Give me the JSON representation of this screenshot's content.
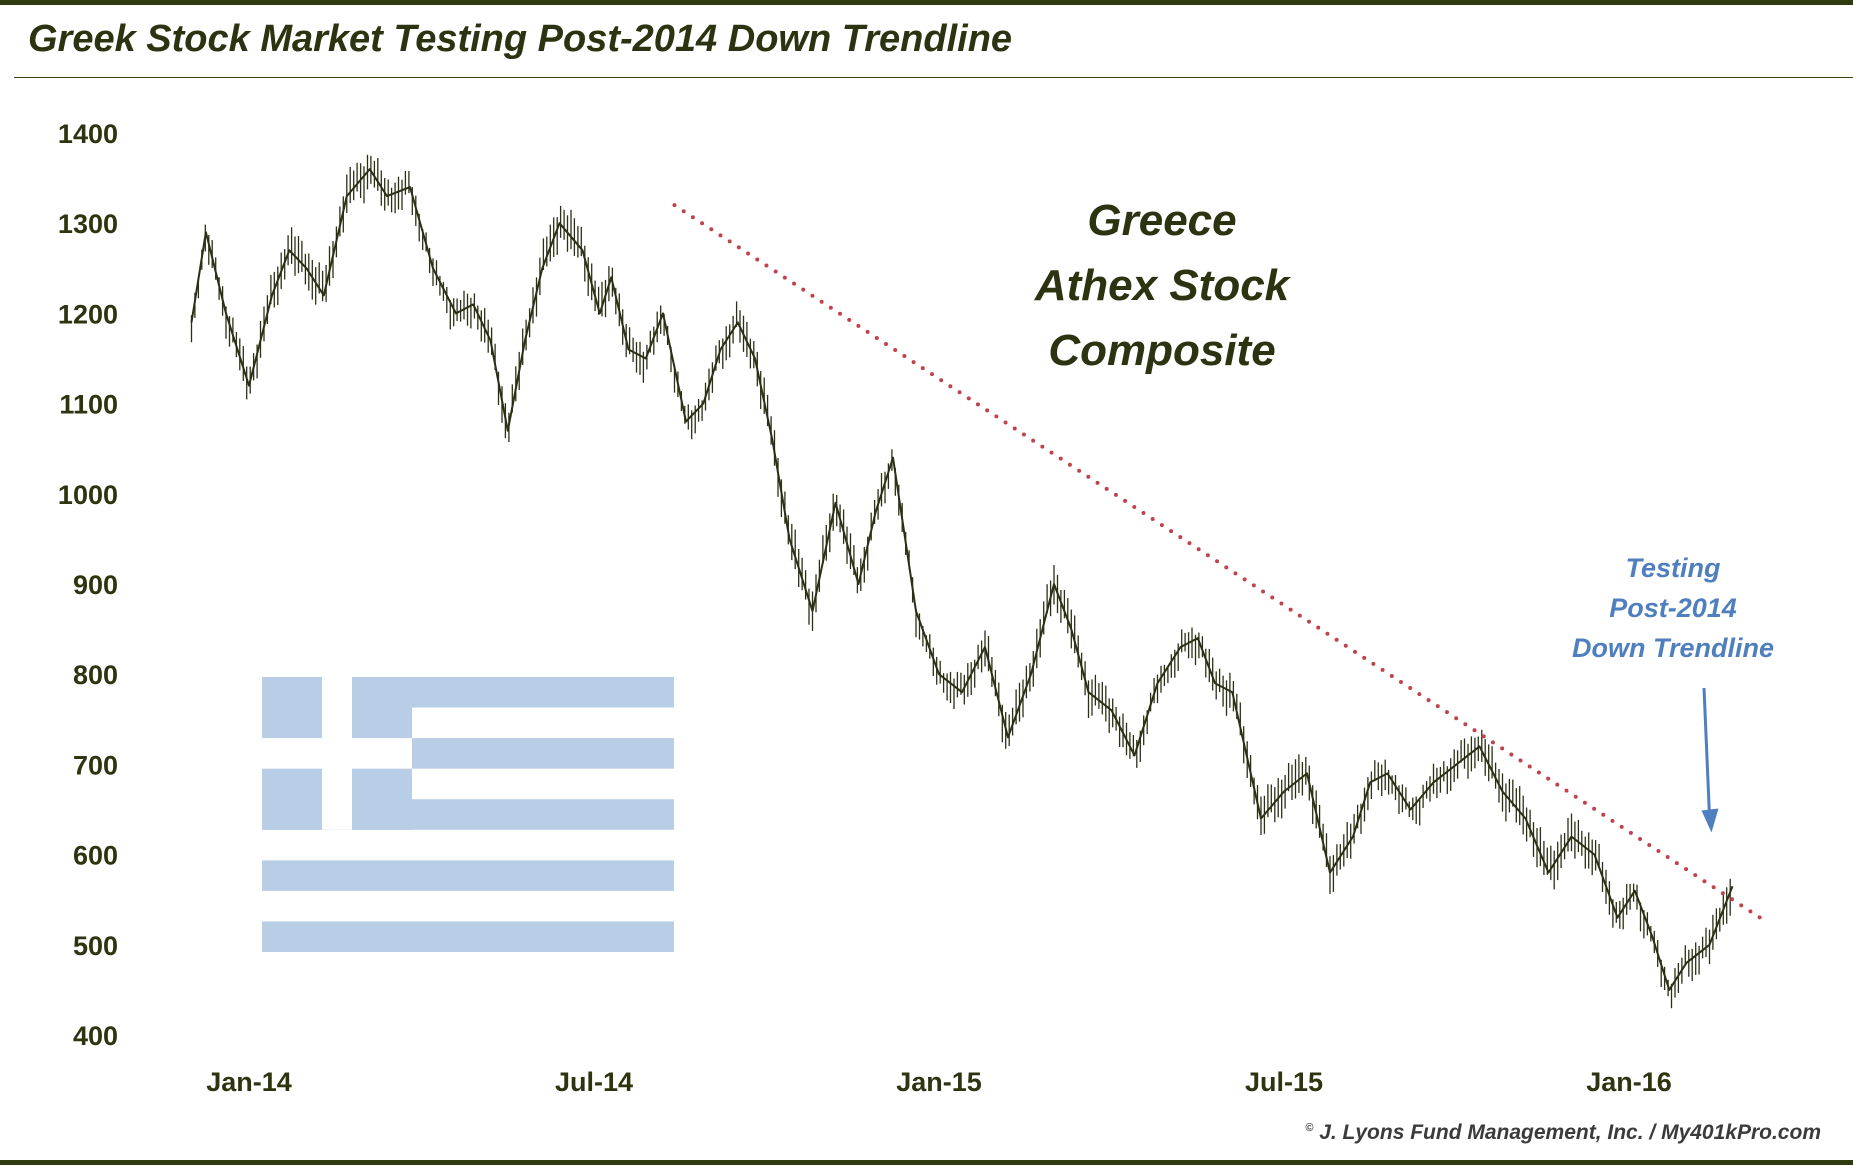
{
  "header": {
    "title": "Greek Stock Market Testing Post-2014 Down Trendline"
  },
  "footer": {
    "credit_mark": "©",
    "credit": "J. Lyons Fund Management, Inc. / My401kPro.com"
  },
  "colors": {
    "price": "#2b2f14",
    "trend": "#c0424b",
    "annotation": "#4f7fbf",
    "flag": "#b8cde6",
    "axis_text": "#2e3410"
  },
  "chart_data": {
    "type": "line",
    "title": "Greece Athex Stock Composite",
    "title_lines": [
      "Greece",
      "Athex Stock",
      "Composite"
    ],
    "series": [
      {
        "name": "Athex Stock Composite",
        "x": [
          0,
          0.25,
          0.6,
          1.0,
          1.4,
          1.7,
          2.0,
          2.3,
          2.7,
          3.1,
          3.4,
          3.8,
          4.2,
          4.6,
          4.9,
          5.2,
          5.5,
          5.8,
          6.1,
          6.4,
          6.8,
          7.1,
          7.3,
          7.6,
          7.9,
          8.2,
          8.6,
          8.9,
          9.2,
          9.5,
          9.8,
          10.1,
          10.4,
          10.8,
          11.2,
          11.6,
          11.9,
          12.0,
          12.2,
          12.6,
          13.0,
          13.4,
          13.8,
          14.2,
          14.6,
          15.0,
          15.3,
          15.6,
          16.0,
          16.4,
          16.8,
          17.2,
          17.5,
          17.8,
          18.1,
          18.6,
          19.0,
          19.4,
          19.8,
          20.2,
          20.5,
          20.8,
          21.2,
          21.6,
          22.0,
          22.4,
          22.8,
          23.2,
          23.6,
          24.0,
          24.4,
          24.8,
          25.1,
          25.4,
          25.7,
          26.0,
          26.4,
          26.8
        ],
        "values": [
          1190,
          1290,
          1200,
          1120,
          1220,
          1270,
          1250,
          1220,
          1330,
          1360,
          1330,
          1340,
          1250,
          1200,
          1210,
          1170,
          1070,
          1170,
          1250,
          1300,
          1270,
          1200,
          1240,
          1160,
          1150,
          1200,
          1080,
          1100,
          1160,
          1190,
          1150,
          1060,
          950,
          870,
          990,
          900,
          980,
          1000,
          1040,
          870,
          800,
          780,
          830,
          730,
          800,
          900,
          850,
          780,
          760,
          710,
          790,
          830,
          840,
          790,
          780,
          640,
          670,
          690,
          580,
          620,
          680,
          690,
          650,
          680,
          700,
          720,
          670,
          640,
          580,
          620,
          600,
          530,
          560,
          510,
          450,
          480,
          500,
          565
        ]
      }
    ],
    "trendline": {
      "x": [
        8.4,
        27.4
      ],
      "values": [
        1320,
        525
      ],
      "style": "dotted"
    },
    "x_ticks": [
      {
        "x": 1.0,
        "label": "Jan-14"
      },
      {
        "x": 7.0,
        "label": "Jul-14"
      },
      {
        "x": 13.0,
        "label": "Jan-15"
      },
      {
        "x": 19.0,
        "label": "Jul-15"
      },
      {
        "x": 25.0,
        "label": "Jan-16"
      }
    ],
    "y_ticks": [
      400,
      500,
      600,
      700,
      800,
      900,
      1000,
      1100,
      1200,
      1300,
      1400
    ],
    "xlim": [
      -0.2,
      27.8
    ],
    "ylim": [
      400,
      1400
    ],
    "annotation": {
      "lines": [
        "Testing",
        "Post-2014",
        "Down Trendline"
      ],
      "target_x": 26.4,
      "target_value": 620
    },
    "xlabel": "",
    "ylabel": "",
    "grid": false
  }
}
